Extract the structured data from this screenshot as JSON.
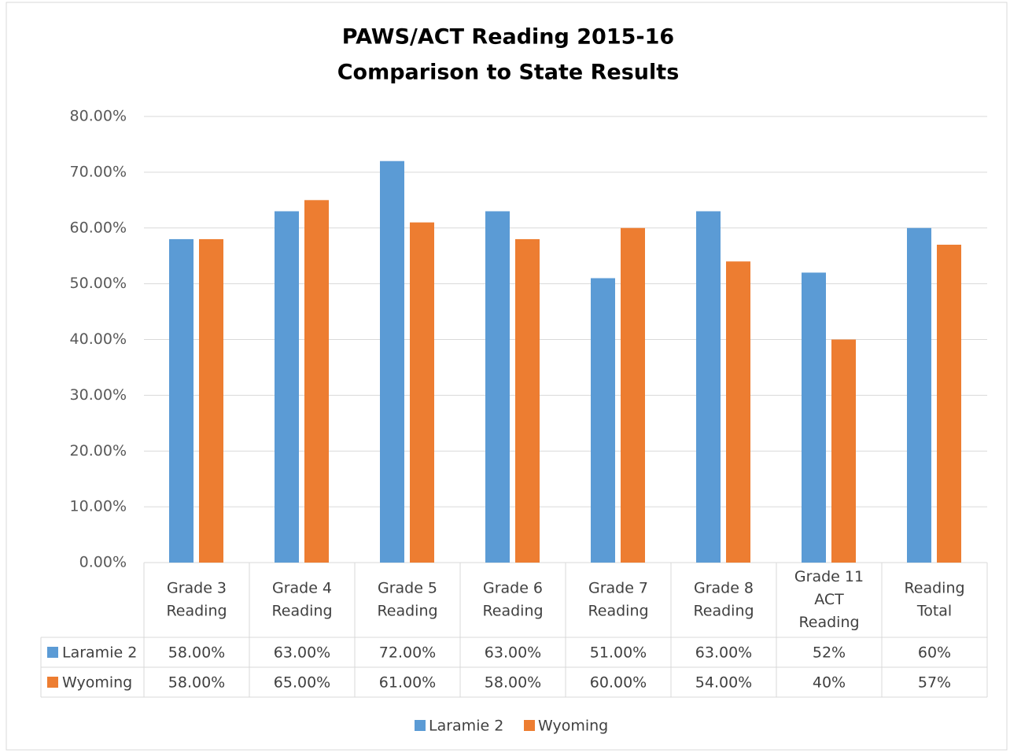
{
  "chart_data": {
    "type": "bar",
    "title": "PAWS/ACT Reading 2015-16",
    "subtitle": "Comparison to State Results",
    "categories": [
      [
        "Grade 3",
        "Reading"
      ],
      [
        "Grade 4",
        "Reading"
      ],
      [
        "Grade 5",
        "Reading"
      ],
      [
        "Grade 6",
        "Reading"
      ],
      [
        "Grade 7",
        "Reading"
      ],
      [
        "Grade 8",
        "Reading"
      ],
      [
        "Grade 11",
        "ACT",
        "Reading"
      ],
      [
        "Reading",
        "Total"
      ]
    ],
    "series": [
      {
        "name": "Laramie 2",
        "color": "#5b9bd5",
        "values": [
          58,
          63,
          72,
          63,
          51,
          63,
          52,
          60
        ],
        "value_labels": [
          "58.00%",
          "63.00%",
          "72.00%",
          "63.00%",
          "51.00%",
          "63.00%",
          "52%",
          "60%"
        ]
      },
      {
        "name": "Wyoming",
        "color": "#ed7d31",
        "values": [
          58,
          65,
          61,
          58,
          60,
          54,
          40,
          57
        ],
        "value_labels": [
          "58.00%",
          "65.00%",
          "61.00%",
          "58.00%",
          "60.00%",
          "54.00%",
          "40%",
          "57%"
        ]
      }
    ],
    "ylim": [
      0,
      80
    ],
    "yticks": [
      {
        "value": 0,
        "label": "0.00%"
      },
      {
        "value": 10,
        "label": "10.00%"
      },
      {
        "value": 20,
        "label": "20.00%"
      },
      {
        "value": 30,
        "label": "30.00%"
      },
      {
        "value": 40,
        "label": "40.00%"
      },
      {
        "value": 50,
        "label": "50.00%"
      },
      {
        "value": 60,
        "label": "60.00%"
      },
      {
        "value": 70,
        "label": "70.00%"
      },
      {
        "value": 80,
        "label": "80.00%"
      }
    ],
    "grid": true,
    "legend": "bottom"
  }
}
